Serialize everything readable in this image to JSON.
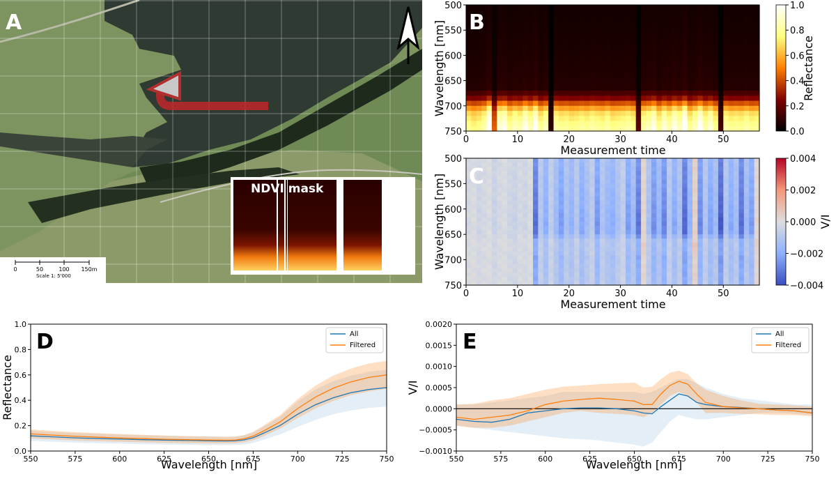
{
  "panels": {
    "A": {
      "letter": "A",
      "inset_title": "NDVI mask",
      "scale": {
        "ticks": [
          "0",
          "50",
          "100",
          "150m"
        ],
        "caption": "Scale 1: 5'000"
      },
      "north_arrow_icon": "north-arrow-icon"
    },
    "B": {
      "letter": "B",
      "xlabel": "Measurement time",
      "ylabel": "Wavelength [nm]",
      "colorbar_label": "Reflectance",
      "xticks": [
        "0",
        "10",
        "20",
        "30",
        "40",
        "50"
      ],
      "yticks": [
        "500",
        "550",
        "600",
        "650",
        "700",
        "750"
      ],
      "cbar_ticks": [
        "0.0",
        "0.2",
        "0.4",
        "0.6",
        "0.8",
        "1.0"
      ]
    },
    "C": {
      "letter": "C",
      "xlabel": "Measurement time",
      "ylabel": "Wavelength [nm]",
      "colorbar_label": "V/I",
      "xticks": [
        "0",
        "10",
        "20",
        "30",
        "40",
        "50"
      ],
      "yticks": [
        "500",
        "550",
        "600",
        "650",
        "700",
        "750"
      ],
      "cbar_ticks": [
        "0.004",
        "0.002",
        "0.000",
        "−0.002",
        "−0.004"
      ]
    },
    "D": {
      "letter": "D",
      "xlabel": "Wavelength [nm]",
      "ylabel": "Reflectance",
      "xticks": [
        "550",
        "575",
        "600",
        "625",
        "650",
        "675",
        "700",
        "725",
        "750"
      ],
      "yticks": [
        "0.0",
        "0.2",
        "0.4",
        "0.6",
        "0.8",
        "1.0"
      ],
      "legend": [
        "All",
        "Filtered"
      ]
    },
    "E": {
      "letter": "E",
      "xlabel": "Wavelength [nm]",
      "ylabel": "V/I",
      "xticks": [
        "550",
        "575",
        "600",
        "625",
        "650",
        "675",
        "700",
        "725",
        "750"
      ],
      "yticks": [
        "0.0020",
        "0.0015",
        "0.0010",
        "0.0005",
        "0.0000",
        "−0.0005",
        "−0.0010"
      ],
      "legend": [
        "All",
        "Filtered"
      ]
    }
  },
  "colors": {
    "all": "#1f77b4",
    "filtered": "#ff7f0e",
    "zero_line": "#000000"
  },
  "chart_data": [
    {
      "id": "B",
      "type": "heatmap",
      "title": "",
      "xlabel": "Measurement time",
      "ylabel": "Wavelength [nm]",
      "xlim": [
        0,
        57
      ],
      "ylim": [
        750,
        500
      ],
      "clim": [
        0.0,
        1.0
      ],
      "colormap": "afmhot",
      "colorbar_label": "Reflectance",
      "wavelength_profile": [
        [
          500,
          0.04
        ],
        [
          550,
          0.05
        ],
        [
          600,
          0.06
        ],
        [
          640,
          0.07
        ],
        [
          665,
          0.08
        ],
        [
          680,
          0.2
        ],
        [
          690,
          0.35
        ],
        [
          700,
          0.55
        ],
        [
          715,
          0.75
        ],
        [
          735,
          0.85
        ],
        [
          750,
          0.9
        ]
      ],
      "column_brightness": [
        0.9,
        0.85,
        0.88,
        0.95,
        1.2,
        0.5,
        1.05,
        1.1,
        0.92,
        1.0,
        0.95,
        1.1,
        0.98,
        1.15,
        0.9,
        1.0,
        0.1,
        0.95,
        0.9,
        0.92,
        0.88,
        0.9,
        0.93,
        0.9,
        0.95,
        0.92,
        0.9,
        0.95,
        0.88,
        0.9,
        0.92,
        0.95,
        0.9,
        0.2,
        0.95,
        1.0,
        1.1,
        0.9,
        1.05,
        0.95,
        1.1,
        1.0,
        1.2,
        0.9,
        1.0,
        1.15,
        0.95,
        1.05,
        0.9,
        0.15,
        0.95,
        0.9,
        0.92,
        0.9,
        0.95,
        0.9,
        0.92
      ]
    },
    {
      "id": "C",
      "type": "heatmap",
      "title": "",
      "xlabel": "Measurement time",
      "ylabel": "Wavelength [nm]",
      "xlim": [
        0,
        57
      ],
      "ylim": [
        750,
        500
      ],
      "clim": [
        -0.004,
        0.004
      ],
      "colormap": "coolwarm",
      "colorbar_label": "V/I",
      "column_offsets": [
        -0.0002,
        -0.0001,
        -0.0003,
        -0.0002,
        -0.0001,
        -0.0004,
        -0.0002,
        -0.0001,
        -0.0003,
        -0.0004,
        -0.0002,
        -0.0003,
        -0.0001,
        -0.0025,
        -0.0008,
        -0.0015,
        -0.0006,
        -0.0012,
        -0.0018,
        -0.001,
        -0.0014,
        -0.0008,
        -0.0016,
        -0.0011,
        -0.0007,
        -0.0019,
        -0.0009,
        -0.0013,
        -0.0015,
        -0.001,
        -0.0006,
        -0.0018,
        -0.0012,
        -0.0024,
        0.0004,
        -0.001,
        -0.002,
        -0.0013,
        -0.0022,
        -0.0008,
        -0.0016,
        -0.001,
        -0.0026,
        -0.0014,
        0.0006,
        -0.0021,
        -0.0009,
        -0.0017,
        -0.0012,
        -0.0028,
        -0.0009,
        -0.0016,
        -0.0011,
        -0.0025,
        -0.0012,
        -0.0018,
        0.0004
      ],
      "row_shape": [
        [
          500,
          -0.5
        ],
        [
          550,
          -0.7
        ],
        [
          600,
          -0.9
        ],
        [
          630,
          -1.1
        ],
        [
          650,
          -1.0
        ],
        [
          665,
          0.6
        ],
        [
          675,
          0.8
        ],
        [
          690,
          -0.2
        ],
        [
          720,
          -0.1
        ],
        [
          750,
          0.0
        ]
      ]
    },
    {
      "id": "D",
      "type": "line",
      "title": "",
      "xlabel": "Wavelength [nm]",
      "ylabel": "Reflectance",
      "xlim": [
        550,
        750
      ],
      "ylim": [
        0.0,
        1.0
      ],
      "legend_position": "top-right",
      "x": [
        550,
        560,
        575,
        590,
        600,
        615,
        625,
        640,
        650,
        660,
        665,
        670,
        675,
        680,
        690,
        700,
        710,
        720,
        730,
        740,
        750
      ],
      "series": [
        {
          "name": "All",
          "values": [
            0.12,
            0.113,
            0.104,
            0.098,
            0.094,
            0.089,
            0.086,
            0.083,
            0.081,
            0.079,
            0.08,
            0.088,
            0.105,
            0.135,
            0.2,
            0.29,
            0.365,
            0.42,
            0.46,
            0.485,
            0.5
          ],
          "lower": [
            0.08,
            0.074,
            0.066,
            0.061,
            0.058,
            0.054,
            0.051,
            0.049,
            0.047,
            0.046,
            0.047,
            0.052,
            0.064,
            0.085,
            0.13,
            0.19,
            0.245,
            0.29,
            0.32,
            0.34,
            0.35
          ],
          "upper": [
            0.16,
            0.151,
            0.142,
            0.135,
            0.13,
            0.124,
            0.121,
            0.117,
            0.115,
            0.112,
            0.114,
            0.124,
            0.146,
            0.185,
            0.27,
            0.39,
            0.485,
            0.55,
            0.595,
            0.625,
            0.64
          ]
        },
        {
          "name": "Filtered",
          "values": [
            0.135,
            0.127,
            0.116,
            0.108,
            0.103,
            0.097,
            0.093,
            0.089,
            0.087,
            0.085,
            0.087,
            0.097,
            0.118,
            0.152,
            0.228,
            0.335,
            0.425,
            0.495,
            0.545,
            0.58,
            0.6
          ],
          "lower": [
            0.1,
            0.093,
            0.083,
            0.077,
            0.073,
            0.068,
            0.065,
            0.062,
            0.06,
            0.059,
            0.061,
            0.069,
            0.085,
            0.112,
            0.175,
            0.26,
            0.335,
            0.395,
            0.44,
            0.47,
            0.49
          ],
          "upper": [
            0.17,
            0.161,
            0.149,
            0.14,
            0.134,
            0.127,
            0.122,
            0.117,
            0.115,
            0.112,
            0.114,
            0.126,
            0.152,
            0.194,
            0.282,
            0.41,
            0.515,
            0.595,
            0.65,
            0.69,
            0.71
          ]
        }
      ]
    },
    {
      "id": "E",
      "type": "line",
      "title": "",
      "xlabel": "Wavelength [nm]",
      "ylabel": "V/I",
      "xlim": [
        550,
        750
      ],
      "ylim": [
        -0.001,
        0.002
      ],
      "legend_position": "top-right",
      "hline": 0.0,
      "x": [
        550,
        560,
        570,
        580,
        590,
        600,
        610,
        620,
        630,
        640,
        650,
        655,
        660,
        665,
        670,
        675,
        680,
        685,
        690,
        700,
        710,
        720,
        730,
        740,
        750
      ],
      "series": [
        {
          "name": "All",
          "values": [
            -0.00025,
            -0.0003,
            -0.00032,
            -0.00025,
            -0.0001,
            -5e-05,
            0.0,
            2e-05,
            2e-05,
            0.0,
            -5e-05,
            -0.0001,
            -0.00012,
            5e-05,
            0.0002,
            0.00035,
            0.0003,
            0.00015,
            0.0001,
            5e-05,
            3e-05,
            0.0,
            -3e-05,
            -5e-05,
            -0.0001
          ],
          "lower": [
            -0.0004,
            -0.00045,
            -0.0005,
            -0.00055,
            -0.0006,
            -0.00065,
            -0.0007,
            -0.00072,
            -0.00075,
            -0.0008,
            -0.00085,
            -0.0009,
            -0.0008,
            -0.00055,
            -0.0003,
            -0.00015,
            -0.0002,
            -0.00025,
            -0.00025,
            -0.0002,
            -0.00015,
            -0.0001,
            -0.0001,
            -0.00012,
            -0.00015
          ],
          "upper": [
            0.0001,
            0.0001,
            0.00015,
            0.0002,
            0.00025,
            0.0003,
            0.0004,
            0.0004,
            0.0004,
            0.0004,
            0.0004,
            0.00035,
            0.0004,
            0.0005,
            0.0006,
            0.0007,
            0.0007,
            0.0006,
            0.0005,
            0.00035,
            0.00025,
            0.0002,
            0.00015,
            0.0001,
            0.0001
          ]
        },
        {
          "name": "Filtered",
          "values": [
            -0.0002,
            -0.00025,
            -0.0002,
            -0.00015,
            -5e-05,
            0.0001,
            0.00018,
            0.00022,
            0.00025,
            0.00022,
            0.00018,
            0.0001,
            0.0001,
            0.00035,
            0.00055,
            0.00065,
            0.00058,
            0.00035,
            0.00015,
            5e-05,
            2e-05,
            0.0,
            -3e-05,
            -5e-05,
            -0.0001
          ],
          "lower": [
            -0.0004,
            -0.00045,
            -0.00045,
            -0.0004,
            -0.0003,
            -0.0002,
            -0.0001,
            -5e-05,
            -0.0001,
            -0.00012,
            -0.00015,
            -0.0002,
            -0.0001,
            0.0001,
            0.0003,
            0.0004,
            0.0003,
            0.00015,
            -0.0001,
            -0.0001,
            -0.00012,
            -0.00013,
            -0.00015,
            -0.00015,
            -0.00018
          ],
          "upper": [
            0.0001,
            0.00012,
            0.0002,
            0.00025,
            0.00035,
            0.00045,
            0.00052,
            0.00055,
            0.00058,
            0.0006,
            0.00062,
            0.0005,
            0.00052,
            0.0007,
            0.00085,
            0.0009,
            0.00082,
            0.0006,
            0.00045,
            0.0003,
            0.0002,
            0.00012,
            0.0001,
            8e-05,
            5e-05
          ]
        }
      ]
    }
  ]
}
